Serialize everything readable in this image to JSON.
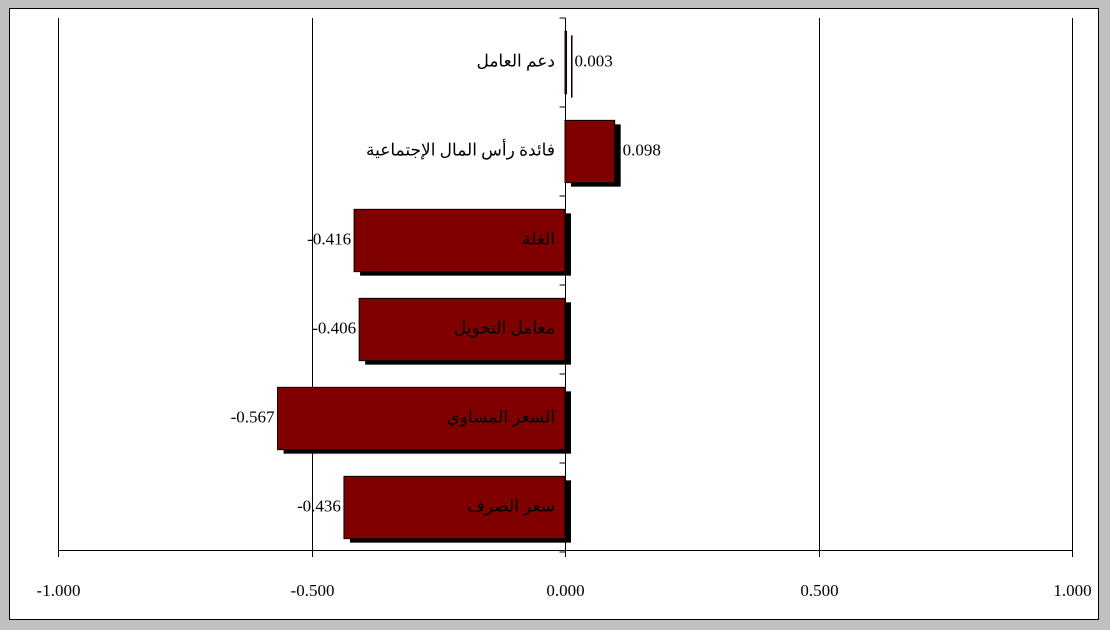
{
  "chart_data": {
    "type": "barh",
    "categories": [
      "دعم العامل",
      "فائدة رأس المال الإجتماعية",
      "الغلة",
      "معامل التحويل",
      "السعر المساوي",
      "سعر الصرف"
    ],
    "values": [
      0.003,
      0.098,
      -0.416,
      -0.406,
      -0.567,
      -0.436
    ],
    "color": "#800000",
    "xlim": [
      -1,
      1
    ],
    "xticks": [
      {
        "value": -1,
        "label": "-1.000"
      },
      {
        "value": -0.5,
        "label": "-0.500"
      },
      {
        "value": 0,
        "label": "0.000"
      },
      {
        "value": 0.5,
        "label": "0.500"
      },
      {
        "value": 1,
        "label": "1.000"
      }
    ],
    "grid": true
  }
}
